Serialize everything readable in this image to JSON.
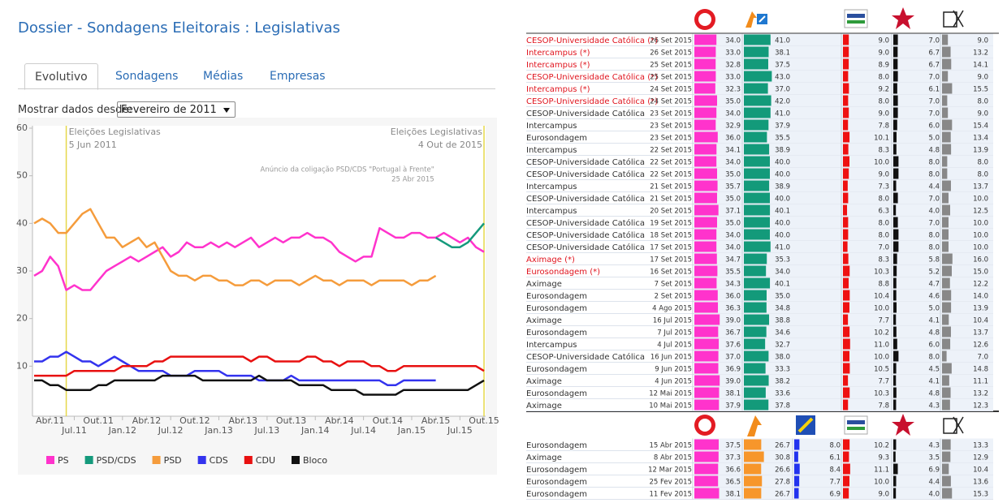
{
  "header": {
    "title": "Dossier - Sondagens Eleitorais : Legislativas"
  },
  "tabs": [
    "Evolutivo",
    "Sondagens",
    "Médias",
    "Empresas"
  ],
  "filter": {
    "label": "Mostrar dados desde:",
    "value": "Fevereiro de 2011"
  },
  "chart_data": {
    "type": "line",
    "x": [
      "2011-02",
      "2011-03",
      "2011-04",
      "2011-05",
      "2011-06",
      "2011-07",
      "2011-08",
      "2011-09",
      "2011-10",
      "2011-11",
      "2011-12",
      "2012-01",
      "2012-02",
      "2012-03",
      "2012-04",
      "2012-05",
      "2012-06",
      "2012-07",
      "2012-08",
      "2012-09",
      "2012-10",
      "2012-11",
      "2012-12",
      "2013-01",
      "2013-02",
      "2013-03",
      "2013-04",
      "2013-05",
      "2013-06",
      "2013-07",
      "2013-08",
      "2013-09",
      "2013-10",
      "2013-11",
      "2013-12",
      "2014-01",
      "2014-02",
      "2014-03",
      "2014-04",
      "2014-05",
      "2014-06",
      "2014-07",
      "2014-08",
      "2014-09",
      "2014-10",
      "2014-11",
      "2014-12",
      "2015-01",
      "2015-02",
      "2015-03",
      "2015-04",
      "2015-05",
      "2015-06",
      "2015-07",
      "2015-08",
      "2015-09",
      "2015-10"
    ],
    "xlim": [
      "2011-02",
      "2015-10"
    ],
    "xticks": [
      {
        "value": "2011-04",
        "label": "Abr.11"
      },
      {
        "value": "2011-07",
        "label": "Jul.11"
      },
      {
        "value": "2011-10",
        "label": "Out.11"
      },
      {
        "value": "2012-01",
        "label": "Jan.12"
      },
      {
        "value": "2012-04",
        "label": "Abr.12"
      },
      {
        "value": "2012-07",
        "label": "Jul.12"
      },
      {
        "value": "2012-10",
        "label": "Out.12"
      },
      {
        "value": "2013-01",
        "label": "Jan.13"
      },
      {
        "value": "2013-04",
        "label": "Abr.13"
      },
      {
        "value": "2013-07",
        "label": "Jul.13"
      },
      {
        "value": "2013-10",
        "label": "Out.13"
      },
      {
        "value": "2014-01",
        "label": "Jan.14"
      },
      {
        "value": "2014-04",
        "label": "Abr.14"
      },
      {
        "value": "2014-07",
        "label": "Jul.14"
      },
      {
        "value": "2014-10",
        "label": "Out.14"
      },
      {
        "value": "2015-01",
        "label": "Jan.15"
      },
      {
        "value": "2015-04",
        "label": "Abr.15"
      },
      {
        "value": "2015-07",
        "label": "Jul.15"
      },
      {
        "value": "2015-10",
        "label": "Out.15"
      }
    ],
    "ylim": [
      0,
      60
    ],
    "yticks": [
      10,
      20,
      30,
      40,
      50,
      60
    ],
    "series": [
      {
        "name": "PS",
        "color": "#ff33cc",
        "values": [
          29,
          30,
          33,
          31,
          26,
          27,
          26,
          26,
          28,
          30,
          31,
          32,
          33,
          32,
          33,
          34,
          35,
          33,
          34,
          36,
          35,
          35,
          36,
          35,
          36,
          35,
          36,
          37,
          35,
          36,
          37,
          36,
          37,
          37,
          38,
          37,
          37,
          36,
          34,
          33,
          32,
          33,
          33,
          39,
          38,
          37,
          37,
          38,
          38,
          37,
          37,
          38,
          37,
          36,
          37,
          35,
          34
        ]
      },
      {
        "name": "PSD/CDS",
        "color": "#159a7c",
        "values": [
          null,
          null,
          null,
          null,
          null,
          null,
          null,
          null,
          null,
          null,
          null,
          null,
          null,
          null,
          null,
          null,
          null,
          null,
          null,
          null,
          null,
          null,
          null,
          null,
          null,
          null,
          null,
          null,
          null,
          null,
          null,
          null,
          null,
          null,
          null,
          null,
          null,
          null,
          null,
          null,
          null,
          null,
          null,
          null,
          null,
          null,
          null,
          null,
          null,
          null,
          37,
          36,
          35,
          35,
          36,
          38,
          40
        ]
      },
      {
        "name": "PSD",
        "color": "#f59c3c",
        "values": [
          40,
          41,
          40,
          38,
          38,
          40,
          42,
          43,
          40,
          37,
          37,
          35,
          36,
          37,
          35,
          36,
          33,
          30,
          29,
          29,
          28,
          29,
          29,
          28,
          28,
          27,
          27,
          28,
          28,
          27,
          28,
          28,
          28,
          27,
          28,
          29,
          28,
          28,
          27,
          28,
          28,
          28,
          27,
          28,
          28,
          28,
          28,
          27,
          28,
          28,
          29,
          null,
          null,
          null,
          null,
          null,
          null
        ]
      },
      {
        "name": "CDS",
        "color": "#3333ee",
        "values": [
          11,
          11,
          12,
          12,
          13,
          12,
          11,
          11,
          10,
          11,
          12,
          11,
          10,
          9,
          9,
          9,
          9,
          8,
          8,
          8,
          9,
          9,
          9,
          9,
          8,
          8,
          8,
          8,
          7,
          7,
          7,
          7,
          8,
          7,
          7,
          7,
          7,
          7,
          7,
          7,
          7,
          7,
          7,
          7,
          6,
          6,
          7,
          7,
          7,
          7,
          7,
          null,
          null,
          null,
          null,
          null,
          null
        ]
      },
      {
        "name": "CDU",
        "color": "#e81010",
        "values": [
          8,
          8,
          8,
          8,
          8,
          9,
          9,
          9,
          9,
          9,
          9,
          10,
          10,
          10,
          10,
          11,
          11,
          12,
          12,
          12,
          12,
          12,
          12,
          12,
          12,
          12,
          12,
          11,
          12,
          12,
          11,
          11,
          11,
          11,
          12,
          12,
          11,
          11,
          10,
          11,
          11,
          11,
          10,
          10,
          9,
          9,
          10,
          10,
          10,
          10,
          10,
          10,
          10,
          10,
          10,
          10,
          9
        ]
      },
      {
        "name": "Bloco",
        "color": "#111111",
        "values": [
          7,
          7,
          6,
          6,
          5,
          5,
          5,
          5,
          6,
          6,
          7,
          7,
          7,
          7,
          7,
          7,
          8,
          8,
          8,
          8,
          8,
          7,
          7,
          7,
          7,
          7,
          7,
          7,
          8,
          7,
          7,
          7,
          7,
          6,
          6,
          6,
          6,
          5,
          5,
          5,
          5,
          4,
          4,
          4,
          4,
          4,
          5,
          5,
          5,
          5,
          5,
          5,
          5,
          5,
          5,
          6,
          7
        ]
      }
    ],
    "annotations": [
      {
        "x": "2011-06",
        "lines": [
          "Eleições Legislativas",
          "5 Jun 2011"
        ],
        "marker_line": true
      },
      {
        "x": "2015-10",
        "lines": [
          "Eleições Legislativas",
          "4 Out de 2015"
        ],
        "marker_line": true
      },
      {
        "x": "2015-04",
        "lines": [
          "Anúncio da coligação PSD/CDS \"Portugal à Frente\"",
          "25 Abr 2015"
        ],
        "marker_line": false
      }
    ]
  },
  "poll_table": {
    "bar_colors": [
      "#ff33cc",
      "#139a7a",
      "#ee1111",
      "#111111",
      "#888888"
    ],
    "rows": [
      [
        "CESOP-Universidade Católica (*)",
        "26 Set 2015",
        "34.0",
        "41.0",
        "9.0",
        "7.0",
        "9.0"
      ],
      [
        "Intercampus (*)",
        "26 Set 2015",
        "33.0",
        "38.1",
        "9.0",
        "6.7",
        "13.2"
      ],
      [
        "Intercampus (*)",
        "25 Set 2015",
        "32.8",
        "37.5",
        "8.9",
        "6.7",
        "14.1"
      ],
      [
        "CESOP-Universidade Católica (*)",
        "25 Set 2015",
        "33.0",
        "43.0",
        "8.0",
        "7.0",
        "9.0"
      ],
      [
        "Intercampus (*)",
        "24 Set 2015",
        "32.3",
        "37.0",
        "9.2",
        "6.1",
        "15.5"
      ],
      [
        "CESOP-Universidade Católica (*)",
        "24 Set 2015",
        "35.0",
        "42.0",
        "8.0",
        "7.0",
        "8.0"
      ],
      [
        "CESOP-Universidade Católica",
        "23 Set 2015",
        "34.0",
        "41.0",
        "9.0",
        "7.0",
        "9.0"
      ],
      [
        "Intercampus",
        "23 Set 2015",
        "32.9",
        "37.9",
        "7.8",
        "6.0",
        "15.4"
      ],
      [
        "Eurosondagem",
        "23 Set 2015",
        "36.0",
        "35.5",
        "10.1",
        "5.0",
        "13.4"
      ],
      [
        "Intercampus",
        "22 Set 2015",
        "34.1",
        "38.9",
        "8.3",
        "4.8",
        "13.9"
      ],
      [
        "CESOP-Universidade Católica",
        "22 Set 2015",
        "34.0",
        "40.0",
        "10.0",
        "8.0",
        "8.0"
      ],
      [
        "CESOP-Universidade Católica",
        "22 Set 2015",
        "35.0",
        "40.0",
        "9.0",
        "8.0",
        "8.0"
      ],
      [
        "Intercampus",
        "21 Set 2015",
        "35.7",
        "38.9",
        "7.3",
        "4.4",
        "13.7"
      ],
      [
        "CESOP-Universidade Católica",
        "21 Set 2015",
        "35.0",
        "40.0",
        "8.0",
        "7.0",
        "10.0"
      ],
      [
        "Intercampus",
        "20 Set 2015",
        "37.1",
        "40.1",
        "6.3",
        "4.0",
        "12.5"
      ],
      [
        "CESOP-Universidade Católica",
        "19 Set 2015",
        "35.0",
        "40.0",
        "8.0",
        "7.0",
        "10.0"
      ],
      [
        "CESOP-Universidade Católica",
        "18 Set 2015",
        "34.0",
        "40.0",
        "8.0",
        "8.0",
        "10.0"
      ],
      [
        "CESOP-Universidade Católica",
        "17 Set 2015",
        "34.0",
        "41.0",
        "7.0",
        "8.0",
        "10.0"
      ],
      [
        "Aximage (*)",
        "17 Set 2015",
        "34.7",
        "35.3",
        "8.3",
        "5.8",
        "16.0"
      ],
      [
        "Eurosondagem (*)",
        "16 Set 2015",
        "35.5",
        "34.0",
        "10.3",
        "5.2",
        "15.0"
      ],
      [
        "Aximage",
        "7 Set 2015",
        "34.3",
        "40.1",
        "8.8",
        "4.7",
        "12.2"
      ],
      [
        "Eurosondagem",
        "2 Set 2015",
        "36.0",
        "35.0",
        "10.4",
        "4.6",
        "14.0"
      ],
      [
        "Eurosondagem",
        "4 Ago 2015",
        "36.3",
        "34.8",
        "10.0",
        "5.0",
        "13.9"
      ],
      [
        "Aximage",
        "16 Jul 2015",
        "39.0",
        "38.8",
        "7.7",
        "4.1",
        "10.4"
      ],
      [
        "Eurosondagem",
        "7 Jul 2015",
        "36.7",
        "34.6",
        "10.2",
        "4.8",
        "13.7"
      ],
      [
        "Intercampus",
        "4 Jul 2015",
        "37.6",
        "32.7",
        "11.0",
        "6.0",
        "12.6"
      ],
      [
        "CESOP-Universidade Católica",
        "16 Jun 2015",
        "37.0",
        "38.0",
        "10.0",
        "8.0",
        "7.0"
      ],
      [
        "Eurosondagem",
        "9 Jun 2015",
        "36.9",
        "33.3",
        "10.5",
        "4.5",
        "14.8"
      ],
      [
        "Aximage",
        "4 Jun 2015",
        "39.0",
        "38.2",
        "7.7",
        "4.1",
        "11.1"
      ],
      [
        "Eurosondagem",
        "12 Mai 2015",
        "38.1",
        "33.6",
        "10.3",
        "4.8",
        "13.2"
      ],
      [
        "Aximage",
        "10 Mai 2015",
        "37.9",
        "37.8",
        "7.8",
        "4.3",
        "12.3"
      ]
    ]
  },
  "poll_table_2": {
    "bar_colors": [
      "#ff33cc",
      "#f7962b",
      "#2233ee",
      "#ee1111",
      "#111111",
      "#888888"
    ],
    "rows": [
      [
        "Eurosondagem",
        "15 Abr 2015",
        "37.5",
        "26.7",
        "8.0",
        "10.2",
        "4.3",
        "13.3"
      ],
      [
        "Aximage",
        "8 Abr 2015",
        "37.3",
        "30.8",
        "6.1",
        "9.3",
        "3.5",
        "12.9"
      ],
      [
        "Eurosondagem",
        "12 Mar 2015",
        "36.6",
        "26.6",
        "8.4",
        "11.1",
        "6.9",
        "10.4"
      ],
      [
        "Eurosondagem",
        "25 Fev 2015",
        "36.5",
        "27.8",
        "7.7",
        "10.0",
        "4.4",
        "13.6"
      ],
      [
        "Eurosondagem",
        "11 Fev 2015",
        "38.1",
        "26.7",
        "6.9",
        "9.0",
        "4.0",
        "15.3"
      ]
    ]
  }
}
